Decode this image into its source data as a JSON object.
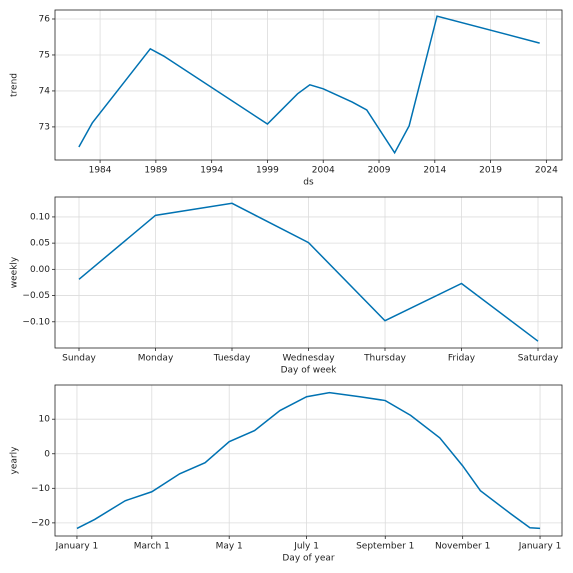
{
  "chart_data": [
    {
      "type": "line",
      "x_label": "ds",
      "y_label": "trend",
      "x": [
        1982.1,
        1983.3,
        1988.5,
        1989.7,
        1999.0,
        2001.7,
        2002.8,
        2004.0,
        2006.6,
        2007.9,
        2010.4,
        2011.7,
        2014.2,
        2023.4
      ],
      "series": [
        {
          "color": "#0072b2",
          "values": [
            72.44,
            73.11,
            75.17,
            74.97,
            73.08,
            73.92,
            74.17,
            74.06,
            73.69,
            73.47,
            72.28,
            73.03,
            76.08,
            75.33
          ]
        }
      ],
      "xlim": [
        1979.96,
        2025.4
      ],
      "xticks": [
        1984,
        1989,
        1994,
        1999,
        2004,
        2009,
        2014,
        2019,
        2024
      ],
      "ylim": [
        72.08,
        76.25
      ],
      "yticks": [
        73,
        74,
        75,
        76
      ],
      "grid": true
    },
    {
      "type": "line",
      "x_label": "Day of week",
      "y_label": "weekly",
      "categories": [
        "Sunday",
        "Monday",
        "Tuesday",
        "Wednesday",
        "Thursday",
        "Friday",
        "Saturday"
      ],
      "series": [
        {
          "color": "#0072b2",
          "values": [
            -0.019,
            0.103,
            0.126,
            0.051,
            -0.098,
            -0.027,
            -0.137
          ]
        }
      ],
      "ylim": [
        -0.15,
        0.138
      ],
      "yticks": [
        {
          "value": -0.1,
          "label": "−0.10"
        },
        {
          "value": -0.05,
          "label": "−0.05"
        },
        {
          "value": 0,
          "label": "0.00"
        },
        {
          "value": 0.05,
          "label": "0.05"
        },
        {
          "value": 0.1,
          "label": "0.10"
        }
      ],
      "grid": true
    },
    {
      "type": "line",
      "x_label": "Day of year",
      "y_label": "yearly",
      "x": [
        0,
        14,
        38,
        59,
        81,
        101,
        120,
        140,
        160,
        181,
        199,
        223,
        243,
        263,
        286,
        304,
        318,
        342,
        357,
        365
      ],
      "series": [
        {
          "color": "#0072b2",
          "values": [
            -21.6,
            -19,
            -13.6,
            -11,
            -5.8,
            -2.6,
            3.5,
            6.7,
            12.5,
            16.5,
            17.7,
            16.5,
            15.4,
            11.1,
            4.6,
            -3.5,
            -10.7,
            -17.4,
            -21.4,
            -21.6
          ]
        }
      ],
      "xlim": [
        -17.3,
        382.3
      ],
      "xticks": [
        {
          "value": 0,
          "label": "January 1"
        },
        {
          "value": 59,
          "label": "March 1"
        },
        {
          "value": 120,
          "label": "May 1"
        },
        {
          "value": 181,
          "label": "July 1"
        },
        {
          "value": 243,
          "label": "September 1"
        },
        {
          "value": 304,
          "label": "November 1"
        },
        {
          "value": 365,
          "label": "January 1"
        }
      ],
      "ylim": [
        -23.8,
        19.9
      ],
      "yticks": [
        {
          "value": -20,
          "label": "−20"
        },
        {
          "value": -10,
          "label": "−10"
        },
        0,
        10
      ],
      "grid": true
    }
  ]
}
